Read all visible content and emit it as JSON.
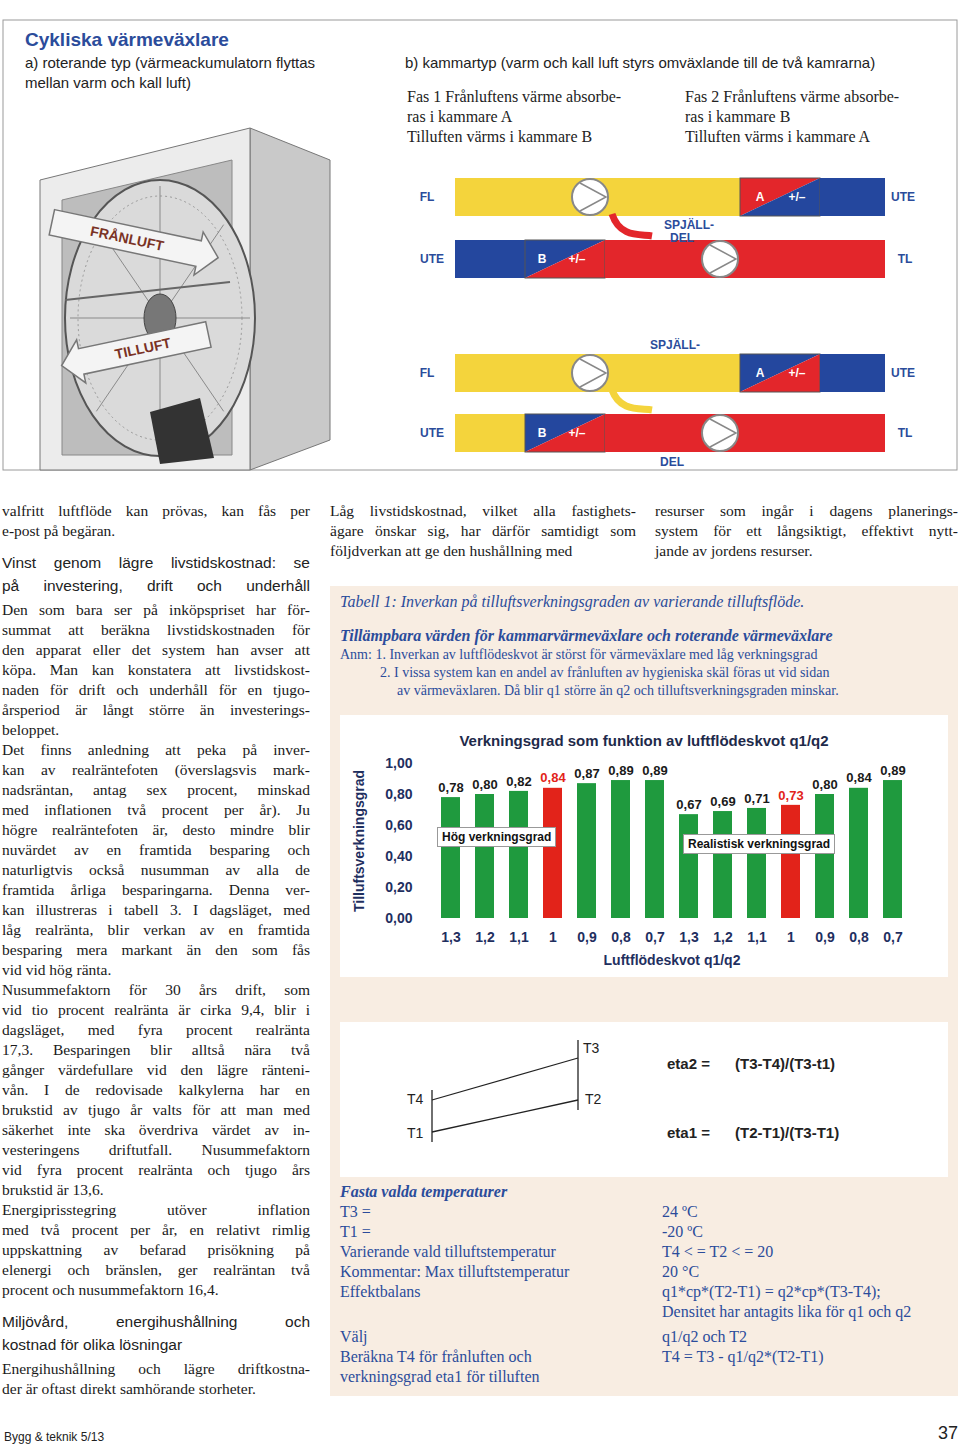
{
  "header": {
    "title": "Cykliska värmeväxlare",
    "rotary_caption": [
      "a) roterande typ (värmeackumulatorn flyttas",
      "mellan varm och kall luft)"
    ],
    "chamber_caption": "b) kammartyp (varm och kall luft styrs omväxlande till de två kamrarna)",
    "phases": [
      [
        "Fas 1 Frånluftens värme absorbe-",
        "ras i kammare A",
        "Tilluften värms i kammare B"
      ],
      [
        "Fas 2 Frånluftens värme absorbe-",
        "ras i kammare B",
        "Tilluften värms i kammare A"
      ]
    ]
  },
  "rotary_illustration": {
    "arrows": [
      "FRÅNLUFT",
      "TILLUFT"
    ]
  },
  "chamber_diagrams": [
    {
      "top_left": "FL",
      "top_right": "UTE",
      "bottom_left": "UTE",
      "bottom_right": "TL",
      "chamber_top": "A",
      "chamber_bottom": "B",
      "control": "+/–",
      "damper": [
        "SPJÄLL-",
        "DEL"
      ]
    },
    {
      "top_left": "FL",
      "top_right": "UTE",
      "bottom_left": "UTE",
      "bottom_right": "TL",
      "chamber_top": "A",
      "chamber_bottom": "B",
      "control": "+/–",
      "damper": [
        "SPJÄLL-",
        "DEL"
      ]
    }
  ],
  "columns": {
    "left": [
      {
        "kind": "p",
        "lines": [
          "valfritt luftflöde kan prövas, kan fås per",
          "e-post på begäran."
        ]
      },
      {
        "kind": "h",
        "lines": [
          "Vinst genom lägre livstidskostnad: se",
          "på investering, drift och underhåll"
        ]
      },
      {
        "kind": "p",
        "lines": [
          "Den som bara ser på inköpspriset har för-",
          "summat att beräkna livstidskostnaden för",
          "den apparat eller det system han avser att",
          "köpa. Man kan konstatera att livstidskost-",
          "naden för drift och underhåll för en tjugo-",
          "årsperiod är långt större än investerings-",
          "beloppet."
        ]
      },
      {
        "kind": "p",
        "lines": [
          "Det finns anledning att peka på inver-",
          "kan av realräntefoten (överslagsvis mark-",
          "nadsräntan, antag sex procent, minskad",
          "med inflationen två procent per år). Ju",
          "högre realräntefoten är, desto mindre blir",
          "nuvärdet av en framtida besparing och",
          "naturligtvis också nusumman av alla de",
          "framtida årliga besparingarna. Denna ver-",
          "kan illustreras i tabell 3. I dagsläget, med",
          "låg realränta, blir verkan av en framtida",
          "besparing mera markant än den som fås",
          "vid vid hög ränta."
        ]
      },
      {
        "kind": "p",
        "lines": [
          "Nusummefaktorn för 30 års drift, som",
          "vid tio procent realränta är cirka 9,4, blir i",
          "dagsläget, med fyra procent realränta",
          "17,3. Besparingen blir alltså nära två",
          "gånger värdefullare vid den lägre ränteni-",
          "vån. I de redovisade kalkylerna har en",
          "brukstid av tjugo år valts för att man med",
          "säkerhet inte ska överdriva värdet av in-",
          "vesteringens driftutfall. Nusummefaktorn",
          "vid fyra procent realränta och tjugo års",
          "brukstid är 13,6."
        ]
      },
      {
        "kind": "p",
        "lines": [
          "Energiprisstegring utöver inflation",
          "med två procent per år, en relativt rimlig",
          "uppskattning av befarad prisökning på",
          "elenergi och bränslen, ger realräntan två",
          "procent och nusummefaktorn 16,4."
        ]
      },
      {
        "kind": "h",
        "lines": [
          "Miljövård, energihushållning och",
          "kostnad för olika lösningar"
        ]
      },
      {
        "kind": "p",
        "lines": [
          "Energihushållning och lägre driftkostna-",
          "der är oftast direkt samhörande storheter."
        ]
      }
    ],
    "middle": [
      {
        "kind": "p",
        "lines": [
          "Låg livstidskostnad, vilket alla fastighets-",
          "ägare önskar sig, har därför samtidigt som",
          "följdverkan att ge den hushållning med"
        ]
      }
    ],
    "right": [
      {
        "kind": "p",
        "lines": [
          "resurser som ingår i dagens planerings-",
          "system för ett långsiktigt, effektivt nytt-",
          "jande av jordens resurser."
        ]
      }
    ]
  },
  "panel": {
    "caption": "Tabell 1: Inverkan på tilluftsverkningsgraden av varierande tilluftsflöde.",
    "heading": "Tillämpbara värden för kammarvärmeväxlare och roterande värmeväxlare",
    "notes": {
      "lead": "Anm:",
      "items": [
        {
          "number": "1.",
          "lines": [
            "Inverkan av luftflödeskvot är störst för värmeväxlare med låg verkningsgrad"
          ]
        },
        {
          "number": "2.",
          "lines": [
            "I vissa system kan en andel av frånluften av hygieniska skäl föras ut vid sidan",
            "av värmeväxlaren. Då blir q1 större än q2 och tilluftsverkningsgraden minskar."
          ]
        }
      ]
    }
  },
  "chart_data": {
    "type": "bar",
    "title": "Verkningsgrad som funktion av luftflödeskvot q1/q2",
    "x_label": "Luftflödeskvot q1/q2",
    "y_label": "Tilluftsverkningsgrad",
    "categories": [
      "1,3",
      "1,2",
      "1,1",
      "1",
      "0,9",
      "0,8",
      "0,7",
      "1,3",
      "1,2",
      "1,1",
      "1",
      "0,9",
      "0,8",
      "0,7"
    ],
    "values": [
      0.78,
      0.8,
      0.82,
      0.84,
      0.87,
      0.89,
      0.89,
      0.67,
      0.69,
      0.71,
      0.73,
      0.8,
      0.84,
      0.89
    ],
    "value_labels": [
      "0,78",
      "0,80",
      "0,82",
      "0,84",
      "0,87",
      "0,89",
      "0,89",
      "0,67",
      "0,69",
      "0,71",
      "0,73",
      "0,80",
      "0,84",
      "0,89"
    ],
    "colors": [
      "#1f9a3e",
      "#1f9a3e",
      "#1f9a3e",
      "#e2231a",
      "#1f9a3e",
      "#1f9a3e",
      "#1f9a3e",
      "#1f9a3e",
      "#1f9a3e",
      "#1f9a3e",
      "#e2231a",
      "#1f9a3e",
      "#1f9a3e",
      "#1f9a3e"
    ],
    "ylim": [
      0,
      1
    ],
    "yticks": [
      {
        "value": 0,
        "label": "0,00"
      },
      {
        "value": 0.2,
        "label": "0,20"
      },
      {
        "value": 0.4,
        "label": "0,40"
      },
      {
        "value": 0.6,
        "label": "0,60"
      },
      {
        "value": 0.8,
        "label": "0,80"
      },
      {
        "value": 1,
        "label": "1,00"
      }
    ],
    "grid": false,
    "data_labels": true,
    "annotations": [
      "Hög verkningsgrad",
      "Realistisk verkningsgrad"
    ]
  },
  "temperature_diagram": {
    "points": {
      "top_right": "T3",
      "top_left": "T4",
      "bottom_right": "T2",
      "bottom_left": "T1"
    },
    "formulas": [
      {
        "name": "eta2 =",
        "expression": "(T3-T4)/(T3-t1)"
      },
      {
        "name": "eta1 =",
        "expression": "(T2-T1)/(T3-T1)"
      }
    ]
  },
  "assumptions": {
    "title": "Fasta valda temperaturer",
    "groups": [
      [
        {
          "label": "T3 =",
          "value": "24 ºC"
        },
        {
          "label": "T1 =",
          "value": "-20 ºC"
        },
        {
          "label": "Varierande vald tilluftstemperatur",
          "value": "T4 < = T2 < = 20"
        },
        {
          "label": "Kommentar: Max tilluftstemperatur",
          "value": "20 °C"
        },
        {
          "label": "Effektbalans",
          "value": "q1*cp*(T2-T1) = q2*cp*(T3-T4);"
        },
        {
          "value": "Densitet har antagits lika för q1 och q2"
        }
      ],
      [
        {
          "label": "Välj",
          "value": "q1/q2 och T2"
        },
        {
          "label": "Beräkna T4 för frånluften och",
          "value": "T4 = T3 - q1/q2*(T2-T1)"
        },
        {
          "label": "verkningsgrad eta1 för tilluften"
        }
      ]
    ]
  },
  "footer": {
    "source": "Bygg & teknik 5/13",
    "page": "37"
  }
}
